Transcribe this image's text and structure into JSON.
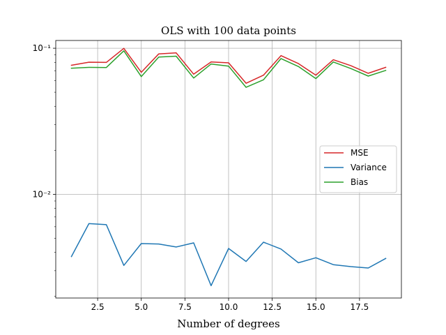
{
  "chart_data": {
    "type": "line",
    "title": "OLS with 100 data points",
    "xlabel": "Number of degrees",
    "ylabel": "",
    "yscale": "log",
    "xlim": [
      0.1,
      19.9
    ],
    "ylim": [
      0.00195,
      0.113
    ],
    "grid": true,
    "legend_position": "center-right",
    "x": [
      1,
      2,
      3,
      4,
      5,
      6,
      7,
      8,
      9,
      10,
      11,
      12,
      13,
      14,
      15,
      16,
      17,
      18,
      19
    ],
    "x_ticks": [
      2.5,
      5.0,
      7.5,
      10.0,
      12.5,
      15.0,
      17.5
    ],
    "x_tick_labels": [
      "2.5",
      "5.0",
      "7.5",
      "10.0",
      "12.5",
      "15.0",
      "17.5"
    ],
    "y_major_ticks": [
      0.01,
      0.1
    ],
    "y_tick_labels": [
      "10⁻²",
      "10⁻¹"
    ],
    "series": [
      {
        "name": "MSE",
        "color": "#d62728",
        "values": [
          0.0765,
          0.0803,
          0.08,
          0.0998,
          0.0684,
          0.0915,
          0.093,
          0.0664,
          0.0805,
          0.0795,
          0.0576,
          0.0654,
          0.089,
          0.0785,
          0.0654,
          0.0834,
          0.076,
          0.0674,
          0.074
        ]
      },
      {
        "name": "Variance",
        "color": "#1f77b4",
        "values": [
          0.00375,
          0.0063,
          0.0062,
          0.00326,
          0.0046,
          0.00457,
          0.00436,
          0.00465,
          0.00237,
          0.00426,
          0.00347,
          0.0047,
          0.00422,
          0.0034,
          0.00368,
          0.0033,
          0.0032,
          0.00313,
          0.00364
        ]
      },
      {
        "name": "Bias",
        "color": "#2ca02c",
        "values": [
          0.073,
          0.074,
          0.0738,
          0.096,
          0.064,
          0.087,
          0.0882,
          0.0625,
          0.078,
          0.0755,
          0.054,
          0.0608,
          0.085,
          0.075,
          0.062,
          0.0805,
          0.0726,
          0.0645,
          0.0705
        ]
      }
    ]
  }
}
